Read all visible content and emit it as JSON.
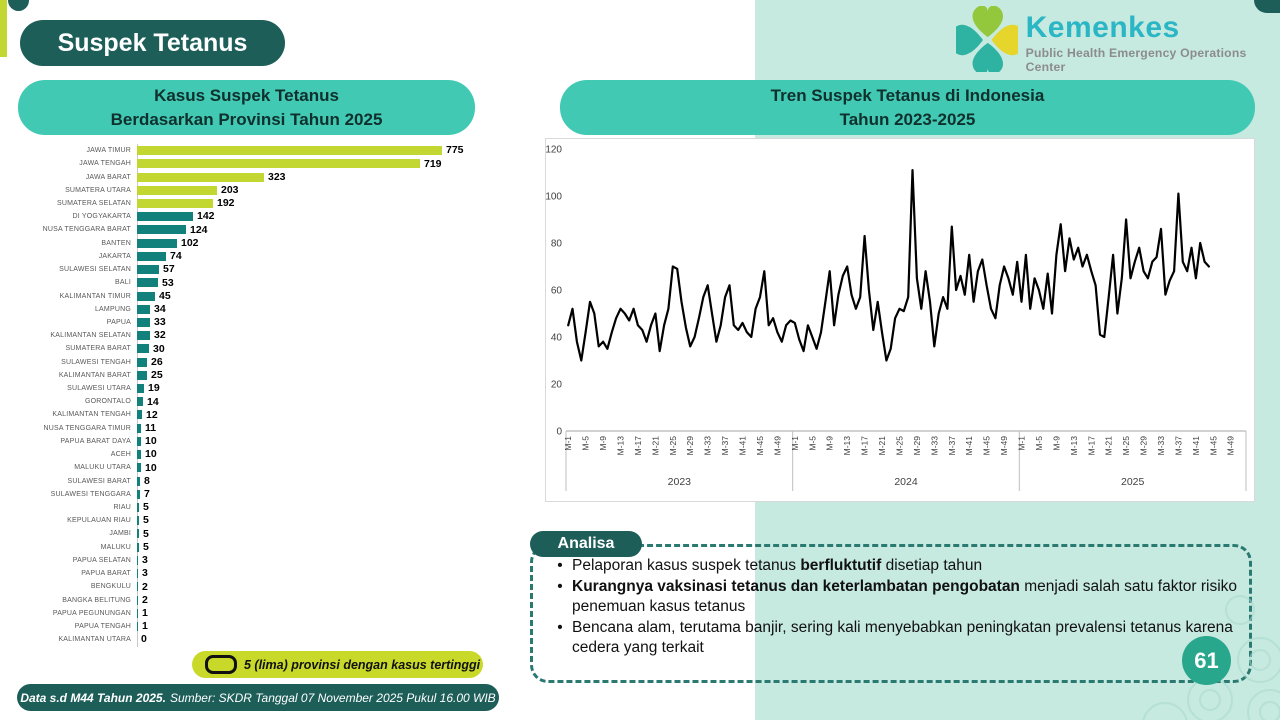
{
  "page": {
    "title": "Suspek Tetanus",
    "page_number": "61"
  },
  "logo": {
    "brand": "Kemenkes",
    "subtitle": "Public Health Emergency Operations Center"
  },
  "colors": {
    "dark_teal": "#1d5e59",
    "header_teal": "#41c9b4",
    "mint": "#c6e9e0",
    "bar_highlight": "#c3d732",
    "bar_normal": "#12807b",
    "line": "#000000",
    "page_circle": "#29a78d",
    "dashed_border": "#2b7a72",
    "brand_text": "#2ab6c5"
  },
  "headers": {
    "provinces_line1": "Kasus Suspek Tetanus",
    "provinces_line2": "Berdasarkan Provinsi Tahun 2025",
    "trend_line1": "Tren Suspek Tetanus di Indonesia",
    "trend_line2": "Tahun 2023-2025"
  },
  "legend": {
    "label": "5 (lima) provinsi dengan kasus tertinggi"
  },
  "footer": {
    "bold": "Data s.d M44 Tahun 2025.",
    "rest": "Sumber: SKDR Tanggal 07 November 2025 Pukul 16.00 WIB"
  },
  "analisa": {
    "title": "Analisa",
    "bullets": [
      [
        {
          "t": "Pelaporan kasus suspek tetanus "
        },
        {
          "t": "berfluktutif",
          "b": 1
        },
        {
          "t": " disetiap tahun"
        }
      ],
      [
        {
          "t": "Kurangnya vaksinasi tetanus dan keterlambatan pengobatan",
          "b": 1
        },
        {
          "t": " menjadi salah satu faktor risiko penemuan kasus tetanus"
        }
      ],
      [
        {
          "t": "Bencana alam, terutama banjir, sering kali menyebabkan peningkatan prevalensi tetanus karena cedera yang terkait"
        }
      ]
    ]
  },
  "chart_data": [
    {
      "type": "bar",
      "orientation": "horizontal",
      "title": "Kasus Suspek Tetanus Berdasarkan Provinsi Tahun 2025",
      "highlight_top_n": 5,
      "legend": "5 (lima) provinsi dengan kasus tertinggi",
      "xlim": [
        0,
        775
      ],
      "categories": [
        "JAWA TIMUR",
        "JAWA TENGAH",
        "JAWA BARAT",
        "SUMATERA UTARA",
        "SUMATERA SELATAN",
        "DI YOGYAKARTA",
        "NUSA TENGGARA BARAT",
        "BANTEN",
        "JAKARTA",
        "SULAWESI SELATAN",
        "BALI",
        "KALIMANTAN TIMUR",
        "LAMPUNG",
        "PAPUA",
        "KALIMANTAN SELATAN",
        "SUMATERA BARAT",
        "SULAWESI TENGAH",
        "KALIMANTAN BARAT",
        "SULAWESI UTARA",
        "GORONTALO",
        "KALIMANTAN TENGAH",
        "NUSA TENGGARA TIMUR",
        "PAPUA BARAT DAYA",
        "ACEH",
        "MALUKU UTARA",
        "SULAWESI BARAT",
        "SULAWESI TENGGARA",
        "RIAU",
        "KEPULAUAN RIAU",
        "JAMBI",
        "MALUKU",
        "PAPUA SELATAN",
        "PAPUA BARAT",
        "BENGKULU",
        "BANGKA BELITUNG",
        "PAPUA PEGUNUNGAN",
        "PAPUA TENGAH",
        "KALIMANTAN UTARA"
      ],
      "values": [
        775,
        719,
        323,
        203,
        192,
        142,
        124,
        102,
        74,
        57,
        53,
        45,
        34,
        33,
        32,
        30,
        26,
        25,
        19,
        14,
        12,
        11,
        10,
        10,
        10,
        8,
        7,
        5,
        5,
        5,
        5,
        3,
        3,
        2,
        2,
        1,
        1,
        0
      ]
    },
    {
      "type": "line",
      "title": "Tren Suspek Tetanus di Indonesia Tahun 2023-2025",
      "ylim": [
        0,
        120
      ],
      "y_ticks": [
        0,
        20,
        40,
        60,
        80,
        100,
        120
      ],
      "x_groups": [
        "2023",
        "2024",
        "2025"
      ],
      "weeks_per_year": 52,
      "x_tick_labels": [
        "M-1",
        "M-5",
        "M-9",
        "M-13",
        "M-17",
        "M-21",
        "M-25",
        "M-29",
        "M-33",
        "M-37",
        "M-41",
        "M-45",
        "M-49"
      ],
      "grid": false,
      "legend_position": "none",
      "values": [
        45,
        52,
        38,
        30,
        42,
        55,
        50,
        36,
        38,
        35,
        42,
        48,
        52,
        50,
        47,
        52,
        45,
        43,
        38,
        45,
        50,
        34,
        45,
        52,
        70,
        69,
        55,
        44,
        36,
        40,
        48,
        57,
        62,
        50,
        38,
        45,
        57,
        62,
        45,
        43,
        46,
        42,
        40,
        52,
        57,
        68,
        45,
        48,
        42,
        38,
        45,
        47,
        46,
        39,
        34,
        45,
        40,
        35,
        42,
        55,
        68,
        45,
        58,
        66,
        70,
        58,
        52,
        57,
        83,
        60,
        43,
        55,
        42,
        30,
        35,
        48,
        52,
        51,
        57,
        111,
        65,
        52,
        68,
        55,
        36,
        50,
        57,
        52,
        87,
        60,
        66,
        58,
        75,
        55,
        68,
        73,
        62,
        52,
        48,
        62,
        70,
        65,
        58,
        72,
        55,
        75,
        52,
        65,
        60,
        52,
        67,
        50,
        75,
        88,
        68,
        82,
        73,
        78,
        70,
        75,
        68,
        62,
        41,
        40,
        57,
        75,
        50,
        65,
        90,
        65,
        72,
        78,
        68,
        65,
        72,
        74,
        86,
        58,
        64,
        68,
        101,
        72,
        68,
        78,
        65,
        80,
        72,
        70
      ]
    }
  ]
}
